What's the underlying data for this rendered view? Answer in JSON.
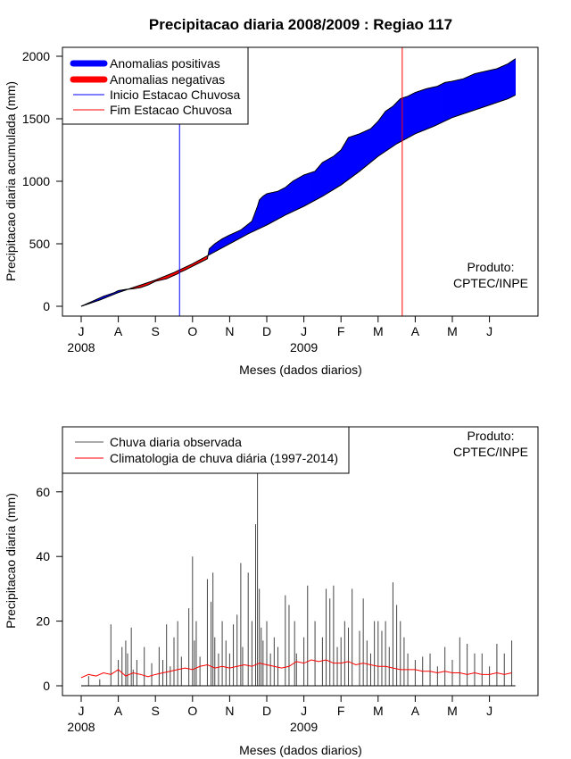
{
  "chart_data": [
    {
      "type": "area",
      "title": "Precipitacao diaria 2008/2009 : Regiao 117",
      "xlabel": "Meses (dados diarios)",
      "ylabel": "Precipitacao diaria acumulada (mm)",
      "ylim": [
        -80,
        2080
      ],
      "yticks": [
        0,
        500,
        1000,
        1500,
        2000
      ],
      "months": [
        "J",
        "A",
        "S",
        "O",
        "N",
        "D",
        "J",
        "F",
        "M",
        "A",
        "M",
        "J"
      ],
      "year_labels": [
        {
          "month_index": 0,
          "label": "2008"
        },
        {
          "month_index": 6,
          "label": "2009"
        }
      ],
      "legend": {
        "position": "top-left",
        "entries": [
          {
            "label": "Anomalias positivas",
            "color": "#0000ff",
            "style": "thick"
          },
          {
            "label": "Anomalias negativas",
            "color": "#ff0000",
            "style": "thick"
          },
          {
            "label": "Inicio Estacao Chuvosa",
            "color": "#0000ff",
            "style": "thin"
          },
          {
            "label": "Fim Estacao Chuvosa",
            "color": "#ff0000",
            "style": "thin"
          }
        ]
      },
      "note": [
        "Produto:",
        "CPTEC/INPE"
      ],
      "x_unit": "month index (0 = July 2008)",
      "season_start": 2.65,
      "season_end": 8.65,
      "observed_cumulative": {
        "x": [
          0,
          0.3,
          0.6,
          0.9,
          1.0,
          1.2,
          1.4,
          1.6,
          1.8,
          2.0,
          2.3,
          2.6,
          2.65,
          2.8,
          3.0,
          3.2,
          3.4,
          3.45,
          3.6,
          3.8,
          4.0,
          4.3,
          4.6,
          4.75,
          4.8,
          4.9,
          5.0,
          5.3,
          5.5,
          5.7,
          6.0,
          6.3,
          6.5,
          6.8,
          7.0,
          7.2,
          7.5,
          7.8,
          8.0,
          8.2,
          8.4,
          8.6,
          8.8,
          9.0,
          9.3,
          9.6,
          9.8,
          10.0,
          10.3,
          10.6,
          10.9,
          11.2,
          11.5,
          11.7
        ],
        "y": [
          0,
          40,
          80,
          110,
          125,
          135,
          140,
          150,
          170,
          200,
          220,
          260,
          270,
          290,
          320,
          350,
          380,
          460,
          500,
          540,
          570,
          610,
          680,
          800,
          850,
          880,
          900,
          920,
          950,
          1000,
          1050,
          1080,
          1150,
          1200,
          1250,
          1350,
          1380,
          1420,
          1480,
          1560,
          1600,
          1660,
          1680,
          1710,
          1740,
          1760,
          1790,
          1800,
          1820,
          1860,
          1880,
          1900,
          1940,
          1980
        ]
      },
      "climatology_cumulative": {
        "x": [
          0,
          0.5,
          1.0,
          1.5,
          2.0,
          2.5,
          3.0,
          3.5,
          4.0,
          4.5,
          5.0,
          5.5,
          6.0,
          6.5,
          7.0,
          7.5,
          8.0,
          8.5,
          9.0,
          9.5,
          10.0,
          10.5,
          11.0,
          11.5,
          11.7
        ],
        "y": [
          0,
          50,
          110,
          160,
          210,
          270,
          340,
          420,
          500,
          580,
          650,
          730,
          800,
          880,
          970,
          1080,
          1200,
          1300,
          1380,
          1440,
          1510,
          1560,
          1610,
          1660,
          1690
        ]
      }
    },
    {
      "type": "bar",
      "xlabel": "Meses (dados diarios)",
      "ylabel": "Precipitacao diaria (mm)",
      "ylim": [
        -3,
        80
      ],
      "yticks": [
        0,
        20,
        40,
        60
      ],
      "months": [
        "J",
        "A",
        "S",
        "O",
        "N",
        "D",
        "J",
        "F",
        "M",
        "A",
        "M",
        "J"
      ],
      "year_labels": [
        {
          "month_index": 0,
          "label": "2008"
        },
        {
          "month_index": 6,
          "label": "2009"
        }
      ],
      "legend": {
        "position": "top-left",
        "entries": [
          {
            "label": "Chuva diaria observada",
            "color": "#555555"
          },
          {
            "label": "Climatologia de chuva diária (1997-2014)",
            "color": "#ff0000"
          }
        ]
      },
      "note": [
        "Produto:",
        "CPTEC/INPE"
      ],
      "x_unit": "month index (0 = July 2008)",
      "daily_observed": {
        "x": [
          0.2,
          0.5,
          0.8,
          1.0,
          1.1,
          1.2,
          1.25,
          1.35,
          1.4,
          1.5,
          1.7,
          1.9,
          2.1,
          2.2,
          2.3,
          2.4,
          2.5,
          2.6,
          2.7,
          2.9,
          3.0,
          3.05,
          3.1,
          3.2,
          3.4,
          3.5,
          3.55,
          3.6,
          3.7,
          3.8,
          3.9,
          4.0,
          4.1,
          4.2,
          4.3,
          4.35,
          4.5,
          4.6,
          4.7,
          4.75,
          4.8,
          4.85,
          4.9,
          5.0,
          5.1,
          5.2,
          5.3,
          5.5,
          5.6,
          5.75,
          5.8,
          6.0,
          6.1,
          6.3,
          6.5,
          6.6,
          6.7,
          6.8,
          6.9,
          7.0,
          7.1,
          7.2,
          7.3,
          7.5,
          7.6,
          7.7,
          7.8,
          7.9,
          8.0,
          8.1,
          8.2,
          8.3,
          8.4,
          8.5,
          8.6,
          8.7,
          8.8,
          9.0,
          9.2,
          9.4,
          9.6,
          9.8,
          10.0,
          10.2,
          10.4,
          10.6,
          10.8,
          11.0,
          11.2,
          11.4,
          11.6
        ],
        "y": [
          3,
          2,
          19,
          8,
          12,
          14,
          10,
          18,
          5,
          8,
          12,
          7,
          12,
          8,
          19,
          6,
          15,
          20,
          9,
          24,
          40,
          14,
          20,
          9,
          33,
          26,
          35,
          15,
          10,
          20,
          14,
          10,
          19,
          22,
          38,
          12,
          35,
          20,
          50,
          66,
          30,
          18,
          14,
          20,
          10,
          15,
          12,
          28,
          25,
          20,
          10,
          15,
          31,
          20,
          15,
          30,
          27,
          31,
          12,
          15,
          20,
          18,
          30,
          17,
          27,
          14,
          10,
          20,
          20,
          17,
          20,
          12,
          32,
          25,
          20,
          15,
          10,
          8,
          9,
          10,
          6,
          12,
          8,
          15,
          13,
          10,
          10,
          6,
          13,
          10,
          14
        ]
      },
      "daily_climatology": {
        "x": [
          0,
          0.2,
          0.4,
          0.6,
          0.8,
          1.0,
          1.2,
          1.4,
          1.6,
          1.8,
          2.0,
          2.2,
          2.4,
          2.6,
          2.8,
          3.0,
          3.2,
          3.4,
          3.6,
          3.8,
          4.0,
          4.2,
          4.4,
          4.6,
          4.8,
          5.0,
          5.2,
          5.4,
          5.6,
          5.8,
          6.0,
          6.2,
          6.4,
          6.6,
          6.8,
          7.0,
          7.2,
          7.4,
          7.6,
          7.8,
          8.0,
          8.2,
          8.4,
          8.6,
          8.8,
          9.0,
          9.2,
          9.4,
          9.6,
          9.8,
          10.0,
          10.2,
          10.4,
          10.6,
          10.8,
          11.0,
          11.2,
          11.4,
          11.6
        ],
        "y": [
          2.5,
          3.5,
          3,
          4,
          3.5,
          5,
          3,
          4,
          3.5,
          2.8,
          3.5,
          4,
          4.5,
          5,
          5.5,
          5,
          6,
          6.5,
          5.5,
          6,
          5.5,
          6,
          6.5,
          6,
          7,
          6.5,
          6,
          5.5,
          6,
          7.5,
          7,
          8,
          7.5,
          8,
          7,
          7,
          7.5,
          6.5,
          7,
          6.5,
          6,
          6,
          5.5,
          5,
          5,
          5,
          4.5,
          4.5,
          4,
          4.5,
          4,
          4,
          3.5,
          4,
          3.5,
          3.5,
          4,
          3.5,
          4
        ]
      }
    }
  ]
}
